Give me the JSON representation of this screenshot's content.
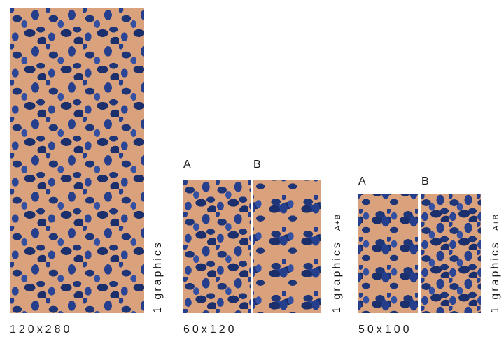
{
  "groups": [
    {
      "size": "120x280",
      "vertical_label": "1 graphics",
      "vertical_suffix": "",
      "letters": []
    },
    {
      "size": "60x120",
      "vertical_label": "1 graphics",
      "vertical_suffix": "A+B",
      "letters": [
        "A",
        "B"
      ]
    },
    {
      "size": "50x100",
      "vertical_label": "1 graphics",
      "vertical_suffix": "A+B",
      "letters": [
        "A",
        "B"
      ]
    }
  ],
  "colors": {
    "background": "#d9a17c",
    "pattern": "#1e3578"
  }
}
